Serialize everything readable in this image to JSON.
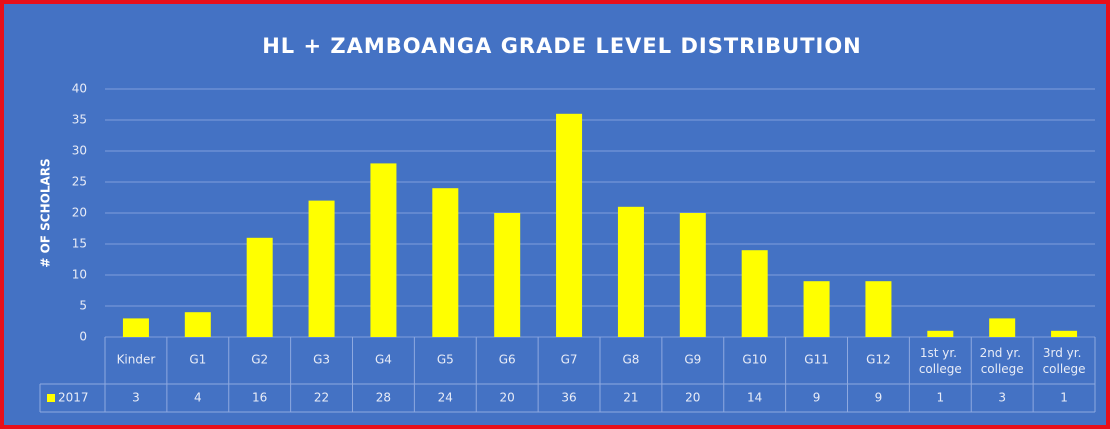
{
  "chart_data": {
    "type": "bar",
    "title": "HL + ZAMBOANGA GRADE LEVEL DISTRIBUTION",
    "y_label": "# OF SCHOLARS",
    "categories": [
      "Kinder",
      "G1",
      "G2",
      "G3",
      "G4",
      "G5",
      "G6",
      "G7",
      "G8",
      "G9",
      "G10",
      "G11",
      "G12",
      "1st yr. college",
      "2nd yr. college",
      "3rd yr. college"
    ],
    "series": [
      {
        "name": "2017",
        "color": "#ffff00",
        "values": [
          3,
          4,
          16,
          22,
          28,
          24,
          20,
          36,
          21,
          20,
          14,
          9,
          9,
          1,
          3,
          1
        ]
      }
    ],
    "ylim": [
      0,
      40
    ],
    "yticks": [
      0,
      5,
      10,
      15,
      20,
      25,
      30,
      35,
      40
    ],
    "grid": true,
    "data_table": true
  }
}
